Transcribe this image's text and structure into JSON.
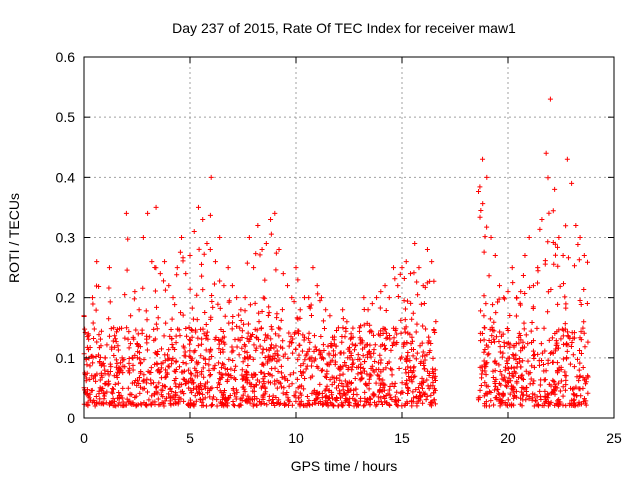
{
  "chart_data": {
    "type": "scatter",
    "title": "Day 237 of 2015, Rate Of TEC Index for receiver maw1",
    "xlabel": "GPS time / hours",
    "ylabel": "ROTI / TECUs",
    "xlim": [
      0,
      25
    ],
    "ylim": [
      0,
      0.6
    ],
    "xticks": [
      "0",
      "5",
      "10",
      "15",
      "20",
      "25"
    ],
    "yticks": [
      "0",
      "0.1",
      "0.2",
      "0.3",
      "0.4",
      "0.5",
      "0.6"
    ],
    "grid": true,
    "legend": "none",
    "marker": "plus",
    "color": "#ff0000",
    "coverage_hours": [
      [
        0.0,
        16.6
      ],
      [
        18.6,
        23.8
      ]
    ],
    "series": [
      {
        "x": [
          0.0,
          0.2,
          0.4,
          0.6,
          0.8,
          1.0,
          1.2,
          1.4,
          1.6,
          1.8,
          2.0,
          2.2,
          2.4,
          2.6,
          2.8,
          3.0,
          3.2,
          3.4,
          3.6,
          3.8,
          4.0,
          4.2,
          4.4,
          4.6,
          4.8,
          5.0,
          5.2,
          5.4,
          5.6,
          5.8,
          6.0,
          6.2,
          6.4,
          6.6,
          6.8,
          7.0,
          7.2,
          7.4,
          7.6,
          7.8,
          8.0,
          8.2,
          8.4,
          8.6,
          8.8,
          9.0,
          9.2,
          9.4,
          9.6,
          9.8,
          10.0,
          10.2,
          10.4,
          10.6,
          10.8,
          11.0,
          11.2,
          11.4,
          11.6,
          11.8,
          12.0,
          12.2,
          12.4,
          12.6,
          12.8,
          13.0,
          13.2,
          13.4,
          13.6,
          13.8,
          14.0,
          14.2,
          14.4,
          14.6,
          14.8,
          15.0,
          15.2,
          15.4,
          15.6,
          15.8,
          16.0,
          16.2,
          16.4,
          18.8,
          19.0,
          19.2,
          19.4,
          19.6,
          19.8,
          20.0,
          20.2,
          20.4,
          20.6,
          20.8,
          21.0,
          21.2,
          21.4,
          21.6,
          21.8,
          22.0,
          22.2,
          22.4,
          22.6,
          22.8,
          23.0,
          23.2,
          23.4,
          23.6
        ],
        "y": [
          0.17,
          0.14,
          0.2,
          0.26,
          0.12,
          0.1,
          0.25,
          0.15,
          0.12,
          0.1,
          0.34,
          0.17,
          0.21,
          0.18,
          0.3,
          0.34,
          0.26,
          0.35,
          0.24,
          0.26,
          0.22,
          0.2,
          0.25,
          0.3,
          0.24,
          0.27,
          0.31,
          0.35,
          0.33,
          0.29,
          0.4,
          0.26,
          0.3,
          0.22,
          0.25,
          0.22,
          0.2,
          0.18,
          0.2,
          0.3,
          0.25,
          0.32,
          0.28,
          0.29,
          0.33,
          0.34,
          0.28,
          0.24,
          0.22,
          0.2,
          0.25,
          0.18,
          0.2,
          0.2,
          0.25,
          0.22,
          0.2,
          0.18,
          0.17,
          0.13,
          0.15,
          0.18,
          0.16,
          0.14,
          0.12,
          0.15,
          0.2,
          0.18,
          0.19,
          0.2,
          0.21,
          0.22,
          0.2,
          0.25,
          0.22,
          0.25,
          0.26,
          0.24,
          0.29,
          0.25,
          0.22,
          0.28,
          0.26,
          0.43,
          0.4,
          0.3,
          0.27,
          0.22,
          0.2,
          0.21,
          0.25,
          0.2,
          0.21,
          0.27,
          0.3,
          0.22,
          0.25,
          0.33,
          0.44,
          0.53,
          0.38,
          0.3,
          0.27,
          0.43,
          0.39,
          0.32,
          0.3,
          0.27
        ]
      }
    ]
  }
}
